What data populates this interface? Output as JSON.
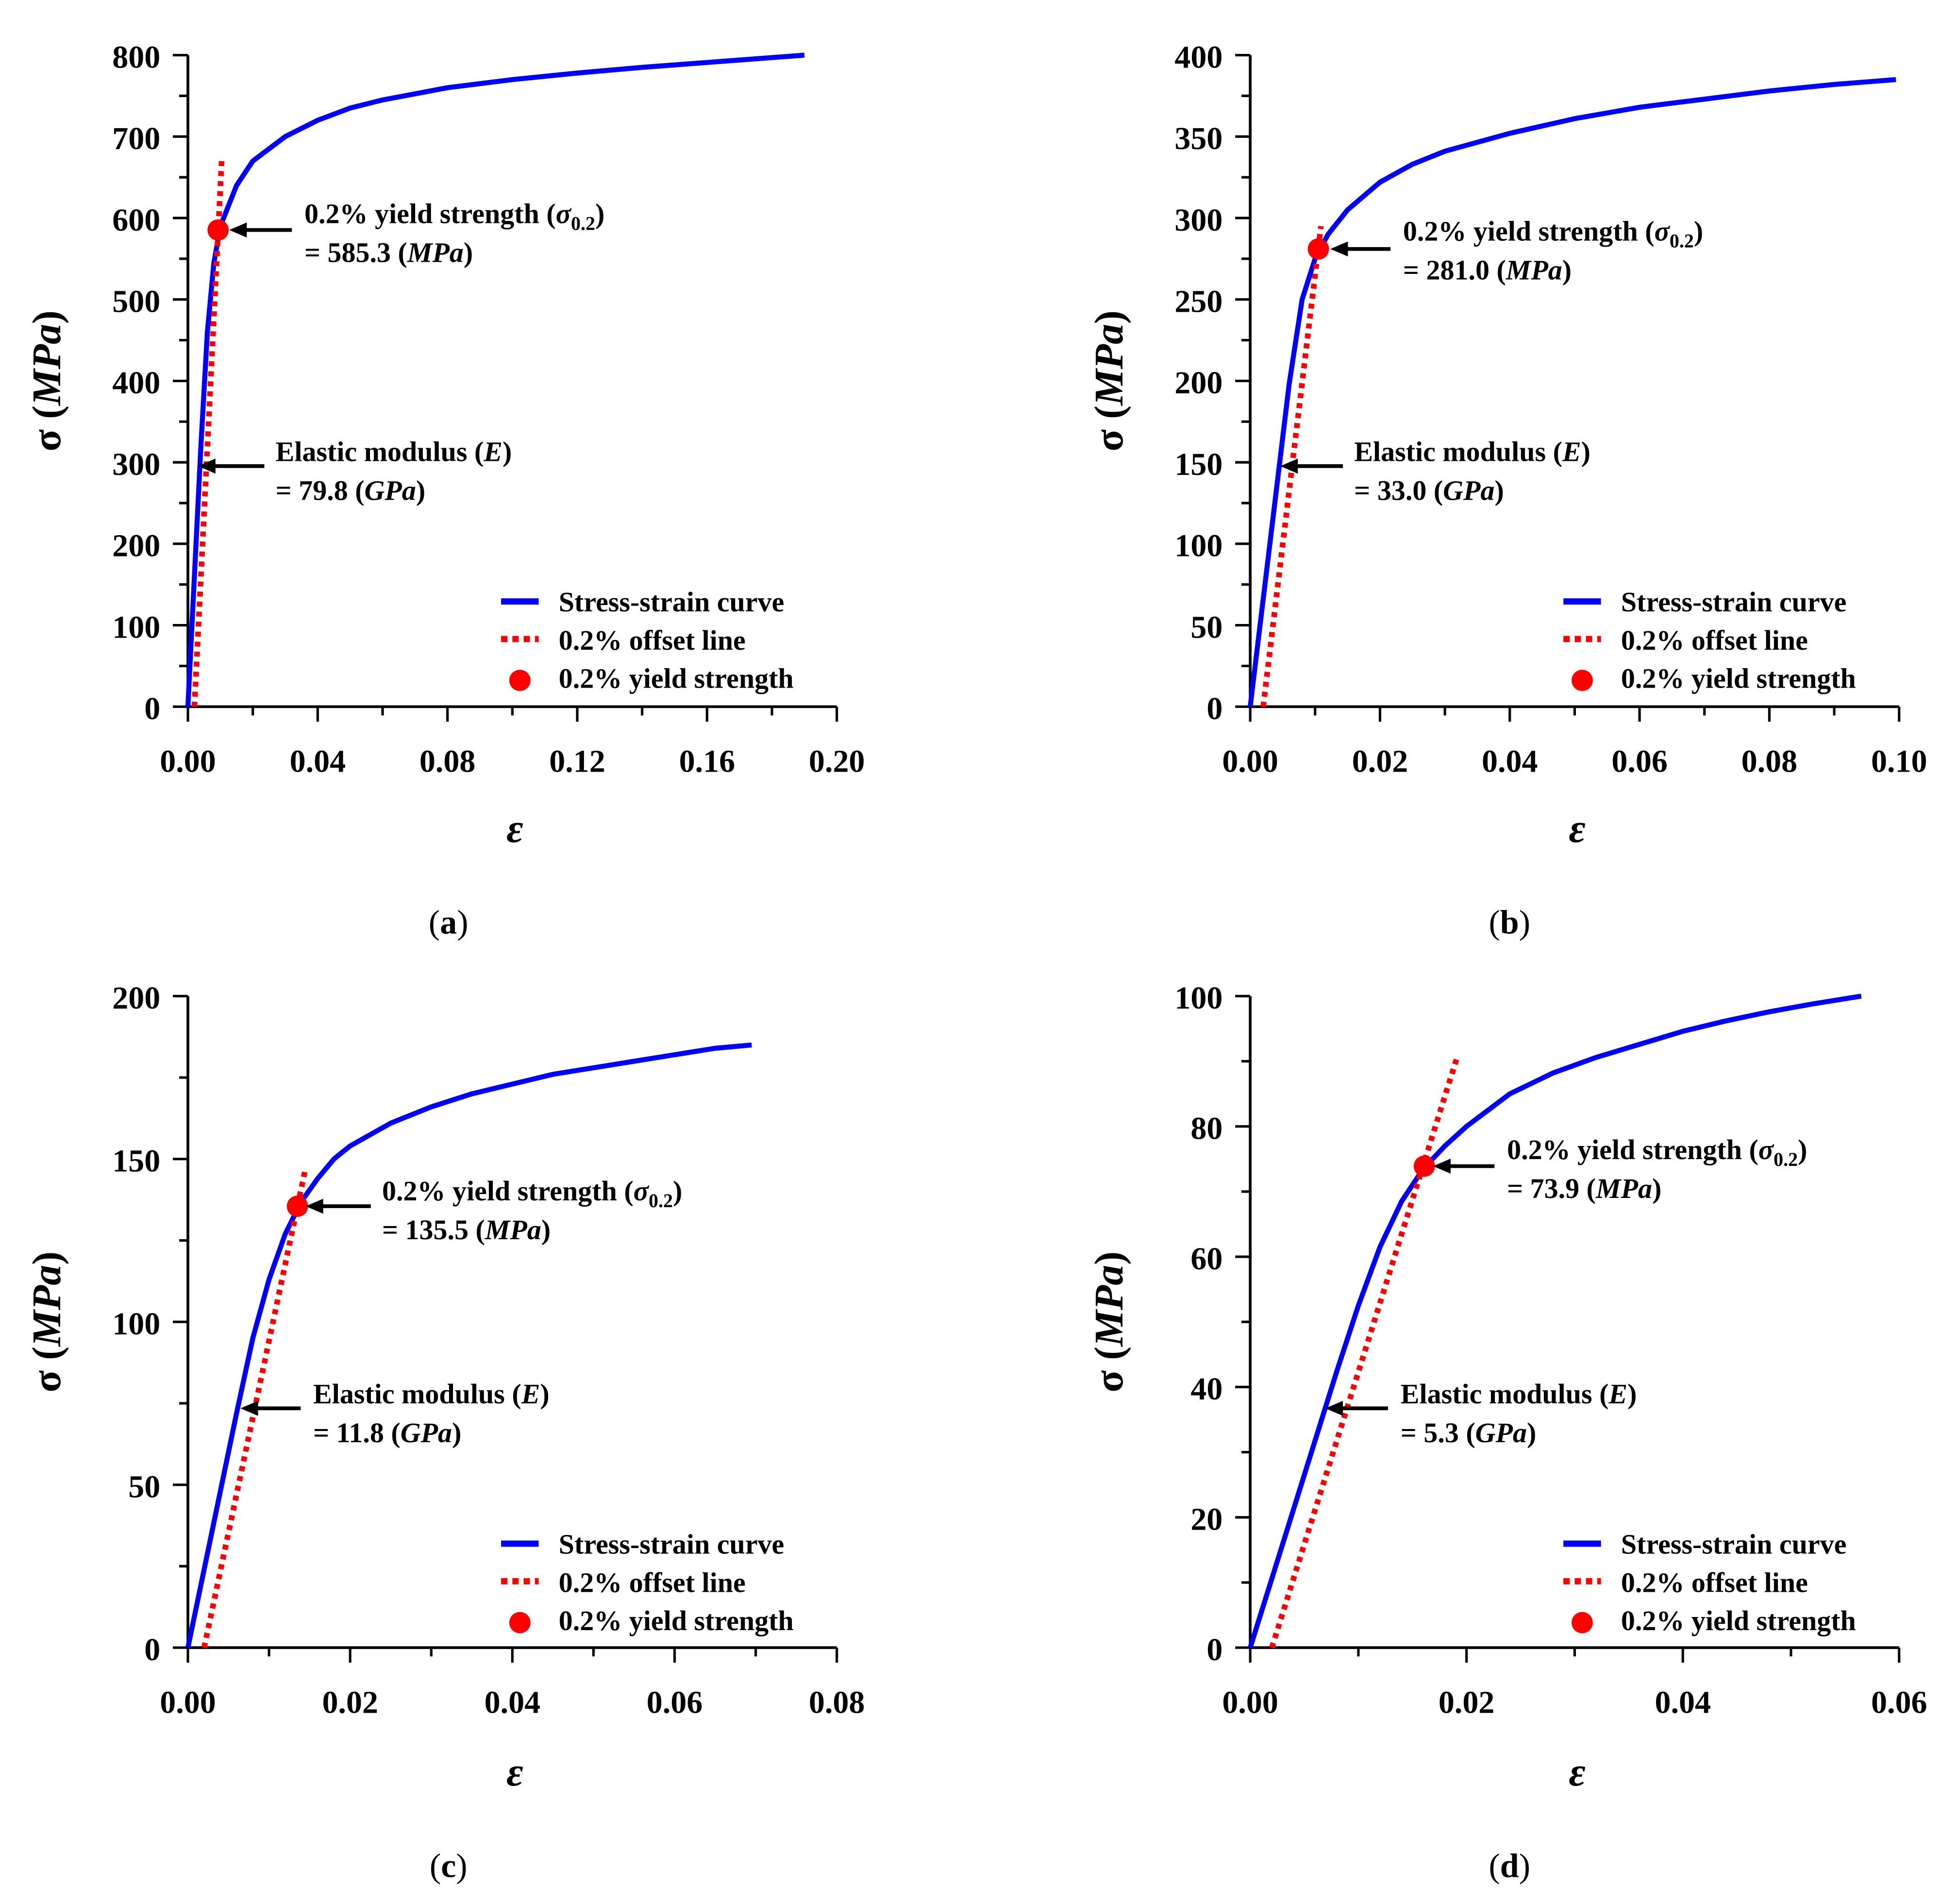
{
  "chart_data": [
    {
      "type": "line",
      "panel": "a",
      "caption": [
        "(",
        "a",
        ")"
      ],
      "xlabel": "ε",
      "ylabel": {
        "sym": "σ",
        "open": "(",
        "unit": "MPa",
        "close": ")"
      },
      "xlim": [
        0,
        0.2
      ],
      "ylim": [
        0,
        800
      ],
      "xticks": [
        0,
        0.04,
        0.08,
        0.12,
        0.16,
        0.2
      ],
      "xtick_labels": [
        "0.00",
        "0.04",
        "0.08",
        "0.12",
        "0.16",
        "0.20"
      ],
      "xminor": [
        0.02,
        0.06,
        0.1,
        0.14,
        0.18
      ],
      "yticks": [
        0,
        100,
        200,
        300,
        400,
        500,
        600,
        700,
        800
      ],
      "ytick_labels": [
        "0",
        "100",
        "200",
        "300",
        "400",
        "500",
        "600",
        "700",
        "800"
      ],
      "yminor": [
        50,
        150,
        250,
        350,
        450,
        550,
        650,
        750
      ],
      "series": [
        {
          "name": "Stress-strain curve",
          "color": "#0000ff",
          "style": "solid",
          "x": [
            0,
            0.002,
            0.004,
            0.006,
            0.008,
            0.01,
            0.015,
            0.02,
            0.03,
            0.04,
            0.05,
            0.06,
            0.08,
            0.1,
            0.12,
            0.14,
            0.16,
            0.19
          ],
          "y": [
            0,
            160,
            320,
            460,
            545,
            590,
            640,
            670,
            700,
            720,
            735,
            745,
            760,
            770,
            778,
            785,
            791,
            800
          ]
        },
        {
          "name": "0.2% offset line",
          "color": "#ff0000",
          "style": "dotted",
          "x": [
            0.002,
            0.0104
          ],
          "y": [
            0,
            670
          ]
        }
      ],
      "yield_point": {
        "name": "0.2% yield strength",
        "color": "#ff0000",
        "x": 0.0093,
        "y": 585.3
      },
      "annotations": {
        "yield": {
          "line1": {
            "text": "0.2% yield strength (",
            "sym": "σ",
            "sub": "0.2",
            "close": ")"
          },
          "line2": {
            "pre": "= 585.3 (",
            "unit": "MPa",
            "post": ")"
          }
        },
        "modulus": {
          "line1": {
            "text": "Elastic modulus (",
            "sym": "E",
            "close": ")"
          },
          "line2": {
            "pre": "= 79.8 (",
            "unit": "GPa",
            "post": ")"
          }
        }
      },
      "legend": [
        "Stress-strain curve",
        "0.2% offset line",
        "0.2% yield strength"
      ],
      "legend_position": "bottom-right"
    },
    {
      "type": "line",
      "panel": "b",
      "caption": [
        "(",
        "b",
        ")"
      ],
      "xlabel": "ε",
      "ylabel": {
        "sym": "σ",
        "open": "(",
        "unit": "MPa",
        "close": ")"
      },
      "xlim": [
        0,
        0.1
      ],
      "ylim": [
        0,
        400
      ],
      "xticks": [
        0,
        0.02,
        0.04,
        0.06,
        0.08,
        0.1
      ],
      "xtick_labels": [
        "0.00",
        "0.02",
        "0.04",
        "0.06",
        "0.08",
        "0.10"
      ],
      "xminor": [
        0.01,
        0.03,
        0.05,
        0.07,
        0.09
      ],
      "yticks": [
        0,
        50,
        100,
        150,
        200,
        250,
        300,
        350,
        400
      ],
      "ytick_labels": [
        "0",
        "50",
        "100",
        "150",
        "200",
        "250",
        "300",
        "350",
        "400"
      ],
      "yminor": [
        25,
        75,
        125,
        175,
        225,
        275,
        325,
        375
      ],
      "series": [
        {
          "name": "Stress-strain curve",
          "color": "#0000ff",
          "style": "solid",
          "x": [
            0,
            0.002,
            0.004,
            0.006,
            0.008,
            0.01,
            0.012,
            0.015,
            0.02,
            0.025,
            0.03,
            0.04,
            0.05,
            0.06,
            0.07,
            0.08,
            0.09,
            0.0995
          ],
          "y": [
            0,
            66,
            132,
            198,
            250,
            275,
            290,
            305,
            322,
            333,
            341,
            352,
            361,
            368,
            373,
            378,
            382,
            385
          ]
        },
        {
          "name": "0.2% offset line",
          "color": "#ff0000",
          "style": "dotted",
          "x": [
            0.002,
            0.0109
          ],
          "y": [
            0,
            295
          ]
        }
      ],
      "yield_point": {
        "name": "0.2% yield strength",
        "color": "#ff0000",
        "x": 0.0105,
        "y": 281.0
      },
      "annotations": {
        "yield": {
          "line1": {
            "text": "0.2% yield strength (",
            "sym": "σ",
            "sub": "0.2",
            "close": ")"
          },
          "line2": {
            "pre": "= 281.0 (",
            "unit": "MPa",
            "post": ")"
          }
        },
        "modulus": {
          "line1": {
            "text": "Elastic modulus (",
            "sym": "E",
            "close": ")"
          },
          "line2": {
            "pre": "= 33.0 (",
            "unit": "GPa",
            "post": ")"
          }
        }
      },
      "legend": [
        "Stress-strain curve",
        "0.2% offset line",
        "0.2% yield strength"
      ],
      "legend_position": "bottom-right"
    },
    {
      "type": "line",
      "panel": "c",
      "caption": [
        "(",
        "c",
        ")"
      ],
      "xlabel": "ε",
      "ylabel": {
        "sym": "σ",
        "open": "(",
        "unit": "MPa",
        "close": ")"
      },
      "xlim": [
        0,
        0.08
      ],
      "ylim": [
        0,
        200
      ],
      "xticks": [
        0,
        0.02,
        0.04,
        0.06,
        0.08
      ],
      "xtick_labels": [
        "0.00",
        "0.02",
        "0.04",
        "0.06",
        "0.08"
      ],
      "xminor": [
        0.01,
        0.03,
        0.05,
        0.07
      ],
      "yticks": [
        0,
        50,
        100,
        150,
        200
      ],
      "ytick_labels": [
        "0",
        "50",
        "100",
        "150",
        "200"
      ],
      "yminor": [
        25,
        75,
        125,
        175
      ],
      "series": [
        {
          "name": "Stress-strain curve",
          "color": "#0000ff",
          "style": "solid",
          "x": [
            0,
            0.002,
            0.004,
            0.006,
            0.008,
            0.01,
            0.012,
            0.014,
            0.016,
            0.018,
            0.02,
            0.025,
            0.03,
            0.035,
            0.04,
            0.045,
            0.05,
            0.055,
            0.06,
            0.065,
            0.0695
          ],
          "y": [
            0,
            24,
            48,
            72,
            95,
            113,
            127,
            137,
            144,
            150,
            154,
            161,
            166,
            170,
            173,
            176,
            178,
            180,
            182,
            184,
            185
          ]
        },
        {
          "name": "0.2% offset line",
          "color": "#ff0000",
          "style": "dotted",
          "x": [
            0.002,
            0.0144
          ],
          "y": [
            0,
            146
          ]
        }
      ],
      "yield_point": {
        "name": "0.2% yield strength",
        "color": "#ff0000",
        "x": 0.0135,
        "y": 135.5
      },
      "annotations": {
        "yield": {
          "line1": {
            "text": "0.2% yield strength (",
            "sym": "σ",
            "sub": "0.2",
            "close": ")"
          },
          "line2": {
            "pre": "= 135.5 (",
            "unit": "MPa",
            "post": ")"
          }
        },
        "modulus": {
          "line1": {
            "text": "Elastic modulus (",
            "sym": "E",
            "close": ")"
          },
          "line2": {
            "pre": "= 11.8 (",
            "unit": "GPa",
            "post": ")"
          }
        }
      },
      "legend": [
        "Stress-strain curve",
        "0.2% offset line",
        "0.2% yield strength"
      ],
      "legend_position": "bottom-right"
    },
    {
      "type": "line",
      "panel": "d",
      "caption": [
        "(",
        "d",
        ")"
      ],
      "xlabel": "ε",
      "ylabel": {
        "sym": "σ",
        "open": "(",
        "unit": "MPa",
        "close": ")"
      },
      "xlim": [
        0,
        0.06
      ],
      "ylim": [
        0,
        100
      ],
      "xticks": [
        0,
        0.02,
        0.04,
        0.06
      ],
      "xtick_labels": [
        "0.00",
        "0.02",
        "0.04",
        "0.06"
      ],
      "xminor": [
        0.01,
        0.03,
        0.05
      ],
      "yticks": [
        0,
        20,
        40,
        60,
        80,
        100
      ],
      "ytick_labels": [
        "0",
        "20",
        "40",
        "60",
        "80",
        "100"
      ],
      "yminor": [
        10,
        30,
        50,
        70,
        90
      ],
      "series": [
        {
          "name": "Stress-strain curve",
          "color": "#0000ff",
          "style": "solid",
          "x": [
            0,
            0.002,
            0.004,
            0.006,
            0.008,
            0.01,
            0.012,
            0.014,
            0.016,
            0.018,
            0.02,
            0.024,
            0.028,
            0.032,
            0.036,
            0.04,
            0.044,
            0.048,
            0.052,
            0.0565
          ],
          "y": [
            0,
            10.6,
            21.2,
            31.8,
            42.4,
            52.5,
            61.5,
            68.5,
            73.5,
            77,
            80,
            85,
            88.2,
            90.6,
            92.6,
            94.6,
            96.2,
            97.6,
            98.8,
            100
          ]
        },
        {
          "name": "0.2% offset line",
          "color": "#ff0000",
          "style": "dotted",
          "x": [
            0.002,
            0.0192
          ],
          "y": [
            0,
            91
          ]
        }
      ],
      "yield_point": {
        "name": "0.2% yield strength",
        "color": "#ff0000",
        "x": 0.0161,
        "y": 73.9
      },
      "annotations": {
        "yield": {
          "line1": {
            "text": "0.2% yield strength (",
            "sym": "σ",
            "sub": "0.2",
            "close": ")"
          },
          "line2": {
            "pre": "= 73.9 (",
            "unit": "MPa",
            "post": ")"
          }
        },
        "modulus": {
          "line1": {
            "text": "Elastic modulus (",
            "sym": "E",
            "close": ")"
          },
          "line2": {
            "pre": "= 5.3 (",
            "unit": "GPa",
            "post": ")"
          }
        }
      },
      "legend": [
        "Stress-strain curve",
        "0.2% offset line",
        "0.2% yield strength"
      ],
      "legend_position": "bottom-right"
    }
  ]
}
